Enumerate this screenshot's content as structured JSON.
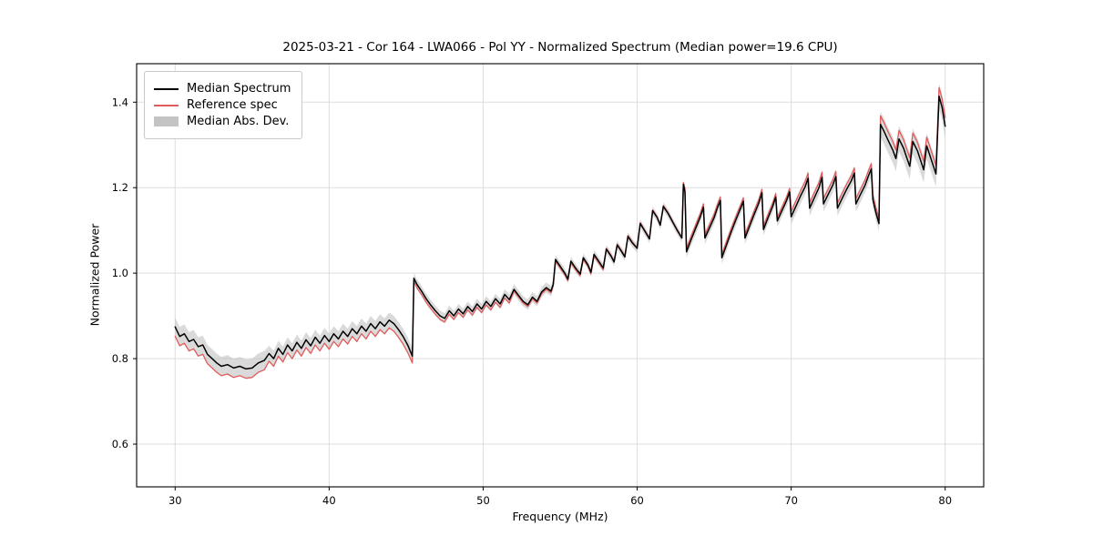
{
  "chart_data": {
    "type": "line",
    "title": "2025-03-21 - Cor 164 - LWA066 - Pol YY - Normalized Spectrum (Median power=19.6 CPU)",
    "xlabel": "Frequency (MHz)",
    "ylabel": "Normalized Power",
    "xlim": [
      27.5,
      82.5
    ],
    "ylim": [
      0.5,
      1.49
    ],
    "xticks": [
      30,
      40,
      50,
      60,
      70,
      80
    ],
    "yticks": [
      0.6,
      0.8,
      1.0,
      1.2,
      1.4
    ],
    "grid": true,
    "colors": {
      "median": "#000000",
      "reference": "#e05c5c",
      "band": "#bcbcbc",
      "grid": "#dddddd",
      "spine": "#000000"
    },
    "legend": {
      "position": "upper-left",
      "entries": [
        {
          "label": "Median Spectrum",
          "type": "line",
          "color": "#000000"
        },
        {
          "label": "Reference spec",
          "type": "line",
          "color": "#e05c5c"
        },
        {
          "label": "Median Abs. Dev.",
          "type": "band",
          "color": "#c4c4c4"
        }
      ]
    },
    "series_format": [
      "frequency_mhz",
      "median_power",
      "reference_power",
      "mad_halfwidth"
    ],
    "points": [
      [
        30.0,
        0.874,
        0.852,
        0.022
      ],
      [
        30.3,
        0.852,
        0.83,
        0.022
      ],
      [
        30.6,
        0.858,
        0.836,
        0.022
      ],
      [
        30.9,
        0.84,
        0.818,
        0.022
      ],
      [
        31.2,
        0.845,
        0.823,
        0.022
      ],
      [
        31.5,
        0.828,
        0.806,
        0.022
      ],
      [
        31.8,
        0.832,
        0.81,
        0.022
      ],
      [
        32.1,
        0.81,
        0.788,
        0.022
      ],
      [
        32.4,
        0.8,
        0.778,
        0.022
      ],
      [
        32.7,
        0.79,
        0.768,
        0.022
      ],
      [
        33.0,
        0.782,
        0.76,
        0.022
      ],
      [
        33.4,
        0.786,
        0.764,
        0.022
      ],
      [
        33.8,
        0.778,
        0.756,
        0.022
      ],
      [
        34.2,
        0.782,
        0.76,
        0.022
      ],
      [
        34.6,
        0.776,
        0.754,
        0.022
      ],
      [
        35.0,
        0.778,
        0.756,
        0.022
      ],
      [
        35.4,
        0.79,
        0.768,
        0.022
      ],
      [
        35.8,
        0.796,
        0.774,
        0.022
      ],
      [
        36.1,
        0.812,
        0.794,
        0.018
      ],
      [
        36.4,
        0.8,
        0.782,
        0.018
      ],
      [
        36.7,
        0.824,
        0.806,
        0.018
      ],
      [
        37.0,
        0.81,
        0.792,
        0.018
      ],
      [
        37.3,
        0.832,
        0.814,
        0.018
      ],
      [
        37.6,
        0.818,
        0.8,
        0.018
      ],
      [
        37.9,
        0.838,
        0.82,
        0.018
      ],
      [
        38.2,
        0.824,
        0.806,
        0.018
      ],
      [
        38.5,
        0.844,
        0.826,
        0.018
      ],
      [
        38.8,
        0.83,
        0.812,
        0.018
      ],
      [
        39.1,
        0.85,
        0.832,
        0.018
      ],
      [
        39.4,
        0.836,
        0.818,
        0.018
      ],
      [
        39.7,
        0.854,
        0.836,
        0.018
      ],
      [
        40.0,
        0.84,
        0.822,
        0.018
      ],
      [
        40.3,
        0.858,
        0.84,
        0.018
      ],
      [
        40.6,
        0.846,
        0.828,
        0.018
      ],
      [
        40.9,
        0.864,
        0.846,
        0.018
      ],
      [
        41.2,
        0.852,
        0.834,
        0.018
      ],
      [
        41.5,
        0.87,
        0.852,
        0.018
      ],
      [
        41.8,
        0.858,
        0.84,
        0.018
      ],
      [
        42.1,
        0.876,
        0.858,
        0.018
      ],
      [
        42.4,
        0.864,
        0.846,
        0.018
      ],
      [
        42.7,
        0.882,
        0.864,
        0.018
      ],
      [
        43.0,
        0.87,
        0.852,
        0.018
      ],
      [
        43.3,
        0.886,
        0.868,
        0.018
      ],
      [
        43.6,
        0.876,
        0.858,
        0.018
      ],
      [
        43.9,
        0.89,
        0.872,
        0.018
      ],
      [
        44.2,
        0.882,
        0.864,
        0.018
      ],
      [
        44.5,
        0.868,
        0.85,
        0.018
      ],
      [
        44.8,
        0.852,
        0.834,
        0.018
      ],
      [
        45.1,
        0.832,
        0.814,
        0.018
      ],
      [
        45.4,
        0.806,
        0.79,
        0.018
      ],
      [
        45.5,
        0.988,
        0.98,
        0.012
      ],
      [
        45.7,
        0.974,
        0.966,
        0.012
      ],
      [
        46.0,
        0.958,
        0.95,
        0.012
      ],
      [
        46.3,
        0.94,
        0.932,
        0.012
      ],
      [
        46.6,
        0.925,
        0.917,
        0.012
      ],
      [
        46.9,
        0.912,
        0.904,
        0.012
      ],
      [
        47.2,
        0.9,
        0.892,
        0.012
      ],
      [
        47.5,
        0.894,
        0.886,
        0.012
      ],
      [
        47.8,
        0.912,
        0.904,
        0.012
      ],
      [
        48.1,
        0.9,
        0.892,
        0.012
      ],
      [
        48.4,
        0.916,
        0.908,
        0.012
      ],
      [
        48.7,
        0.905,
        0.897,
        0.012
      ],
      [
        49.0,
        0.922,
        0.914,
        0.012
      ],
      [
        49.3,
        0.91,
        0.902,
        0.012
      ],
      [
        49.6,
        0.928,
        0.92,
        0.012
      ],
      [
        49.9,
        0.916,
        0.908,
        0.012
      ],
      [
        50.2,
        0.934,
        0.926,
        0.012
      ],
      [
        50.5,
        0.922,
        0.914,
        0.012
      ],
      [
        50.8,
        0.94,
        0.932,
        0.012
      ],
      [
        51.1,
        0.928,
        0.92,
        0.012
      ],
      [
        51.4,
        0.95,
        0.942,
        0.012
      ],
      [
        51.7,
        0.938,
        0.93,
        0.012
      ],
      [
        52.0,
        0.962,
        0.958,
        0.012
      ],
      [
        52.3,
        0.948,
        0.944,
        0.012
      ],
      [
        52.6,
        0.934,
        0.93,
        0.012
      ],
      [
        52.9,
        0.926,
        0.922,
        0.012
      ],
      [
        53.2,
        0.944,
        0.94,
        0.012
      ],
      [
        53.5,
        0.934,
        0.93,
        0.012
      ],
      [
        53.8,
        0.956,
        0.952,
        0.012
      ],
      [
        54.1,
        0.966,
        0.962,
        0.012
      ],
      [
        54.4,
        0.958,
        0.954,
        0.012
      ],
      [
        54.55,
        0.974,
        0.97,
        0.012
      ],
      [
        54.7,
        1.032,
        1.028,
        0.01
      ],
      [
        55.0,
        1.016,
        1.012,
        0.01
      ],
      [
        55.3,
        1.0,
        0.996,
        0.01
      ],
      [
        55.5,
        0.986,
        0.982,
        0.01
      ],
      [
        55.7,
        1.028,
        1.024,
        0.01
      ],
      [
        56.0,
        1.012,
        1.008,
        0.01
      ],
      [
        56.3,
        0.998,
        0.994,
        0.01
      ],
      [
        56.5,
        1.036,
        1.032,
        0.01
      ],
      [
        56.8,
        1.02,
        1.016,
        0.01
      ],
      [
        57.0,
        1.002,
        0.998,
        0.01
      ],
      [
        57.2,
        1.044,
        1.04,
        0.01
      ],
      [
        57.5,
        1.028,
        1.024,
        0.01
      ],
      [
        57.8,
        1.012,
        1.008,
        0.01
      ],
      [
        58.0,
        1.056,
        1.058,
        0.01
      ],
      [
        58.3,
        1.04,
        1.042,
        0.01
      ],
      [
        58.5,
        1.026,
        1.028,
        0.01
      ],
      [
        58.7,
        1.066,
        1.068,
        0.01
      ],
      [
        59.0,
        1.05,
        1.052,
        0.01
      ],
      [
        59.2,
        1.038,
        1.04,
        0.01
      ],
      [
        59.4,
        1.086,
        1.088,
        0.01
      ],
      [
        59.7,
        1.07,
        1.072,
        0.01
      ],
      [
        60.0,
        1.058,
        1.06,
        0.01
      ],
      [
        60.2,
        1.116,
        1.118,
        0.01
      ],
      [
        60.5,
        1.098,
        1.1,
        0.01
      ],
      [
        60.8,
        1.08,
        1.082,
        0.01
      ],
      [
        61.0,
        1.146,
        1.148,
        0.01
      ],
      [
        61.3,
        1.13,
        1.132,
        0.01
      ],
      [
        61.5,
        1.112,
        1.114,
        0.01
      ],
      [
        61.7,
        1.156,
        1.158,
        0.01
      ],
      [
        62.0,
        1.14,
        1.142,
        0.01
      ],
      [
        62.3,
        1.12,
        1.122,
        0.01
      ],
      [
        62.6,
        1.1,
        1.102,
        0.01
      ],
      [
        62.9,
        1.082,
        1.084,
        0.01
      ],
      [
        63.0,
        1.208,
        1.212,
        0.01
      ],
      [
        63.1,
        1.19,
        1.198,
        0.014
      ],
      [
        63.2,
        1.05,
        1.058,
        0.014
      ],
      [
        63.5,
        1.078,
        1.086,
        0.014
      ],
      [
        63.8,
        1.105,
        1.113,
        0.014
      ],
      [
        64.1,
        1.132,
        1.14,
        0.014
      ],
      [
        64.3,
        1.154,
        1.162,
        0.014
      ],
      [
        64.4,
        1.082,
        1.09,
        0.014
      ],
      [
        64.7,
        1.106,
        1.114,
        0.014
      ],
      [
        65.0,
        1.13,
        1.138,
        0.014
      ],
      [
        65.2,
        1.152,
        1.16,
        0.014
      ],
      [
        65.4,
        1.17,
        1.178,
        0.014
      ],
      [
        65.5,
        1.036,
        1.044,
        0.014
      ],
      [
        65.8,
        1.066,
        1.074,
        0.014
      ],
      [
        66.1,
        1.096,
        1.104,
        0.014
      ],
      [
        66.4,
        1.124,
        1.132,
        0.014
      ],
      [
        66.7,
        1.15,
        1.158,
        0.014
      ],
      [
        66.9,
        1.168,
        1.176,
        0.014
      ],
      [
        67.0,
        1.082,
        1.09,
        0.014
      ],
      [
        67.3,
        1.11,
        1.118,
        0.014
      ],
      [
        67.6,
        1.138,
        1.146,
        0.014
      ],
      [
        67.9,
        1.164,
        1.172,
        0.014
      ],
      [
        68.1,
        1.188,
        1.196,
        0.014
      ],
      [
        68.2,
        1.102,
        1.11,
        0.014
      ],
      [
        68.5,
        1.13,
        1.138,
        0.014
      ],
      [
        68.8,
        1.156,
        1.164,
        0.014
      ],
      [
        69.0,
        1.178,
        1.186,
        0.014
      ],
      [
        69.1,
        1.122,
        1.13,
        0.014
      ],
      [
        69.4,
        1.146,
        1.154,
        0.014
      ],
      [
        69.7,
        1.17,
        1.178,
        0.014
      ],
      [
        69.9,
        1.19,
        1.198,
        0.014
      ],
      [
        70.0,
        1.132,
        1.144,
        0.018
      ],
      [
        70.3,
        1.156,
        1.168,
        0.018
      ],
      [
        70.6,
        1.18,
        1.192,
        0.018
      ],
      [
        70.9,
        1.202,
        1.214,
        0.018
      ],
      [
        71.1,
        1.222,
        1.234,
        0.018
      ],
      [
        71.2,
        1.152,
        1.164,
        0.018
      ],
      [
        71.5,
        1.176,
        1.188,
        0.018
      ],
      [
        71.8,
        1.2,
        1.212,
        0.018
      ],
      [
        72.0,
        1.224,
        1.236,
        0.018
      ],
      [
        72.1,
        1.162,
        1.174,
        0.018
      ],
      [
        72.4,
        1.184,
        1.196,
        0.018
      ],
      [
        72.7,
        1.206,
        1.218,
        0.018
      ],
      [
        72.9,
        1.226,
        1.238,
        0.018
      ],
      [
        73.0,
        1.152,
        1.164,
        0.018
      ],
      [
        73.3,
        1.174,
        1.186,
        0.018
      ],
      [
        73.6,
        1.196,
        1.208,
        0.018
      ],
      [
        73.9,
        1.216,
        1.228,
        0.018
      ],
      [
        74.1,
        1.234,
        1.246,
        0.018
      ],
      [
        74.2,
        1.162,
        1.174,
        0.018
      ],
      [
        74.5,
        1.184,
        1.196,
        0.018
      ],
      [
        74.8,
        1.206,
        1.218,
        0.018
      ],
      [
        75.0,
        1.226,
        1.238,
        0.018
      ],
      [
        75.2,
        1.244,
        1.256,
        0.018
      ],
      [
        75.3,
        1.172,
        1.184,
        0.018
      ],
      [
        75.5,
        1.142,
        1.154,
        0.018
      ],
      [
        75.7,
        1.116,
        1.128,
        0.018
      ],
      [
        75.8,
        1.348,
        1.368,
        0.03
      ],
      [
        76.0,
        1.334,
        1.354,
        0.03
      ],
      [
        76.3,
        1.31,
        1.33,
        0.03
      ],
      [
        76.6,
        1.288,
        1.308,
        0.03
      ],
      [
        76.8,
        1.268,
        1.288,
        0.03
      ],
      [
        77.0,
        1.314,
        1.334,
        0.03
      ],
      [
        77.3,
        1.292,
        1.312,
        0.03
      ],
      [
        77.5,
        1.27,
        1.29,
        0.03
      ],
      [
        77.7,
        1.25,
        1.27,
        0.03
      ],
      [
        77.9,
        1.308,
        1.328,
        0.03
      ],
      [
        78.2,
        1.286,
        1.306,
        0.03
      ],
      [
        78.4,
        1.264,
        1.284,
        0.03
      ],
      [
        78.6,
        1.242,
        1.262,
        0.03
      ],
      [
        78.8,
        1.298,
        1.318,
        0.03
      ],
      [
        79.0,
        1.276,
        1.296,
        0.03
      ],
      [
        79.2,
        1.254,
        1.274,
        0.03
      ],
      [
        79.4,
        1.232,
        1.252,
        0.03
      ],
      [
        79.6,
        1.414,
        1.434,
        0.03
      ],
      [
        79.8,
        1.388,
        1.408,
        0.03
      ],
      [
        80.0,
        1.344,
        1.364,
        0.03
      ]
    ]
  }
}
